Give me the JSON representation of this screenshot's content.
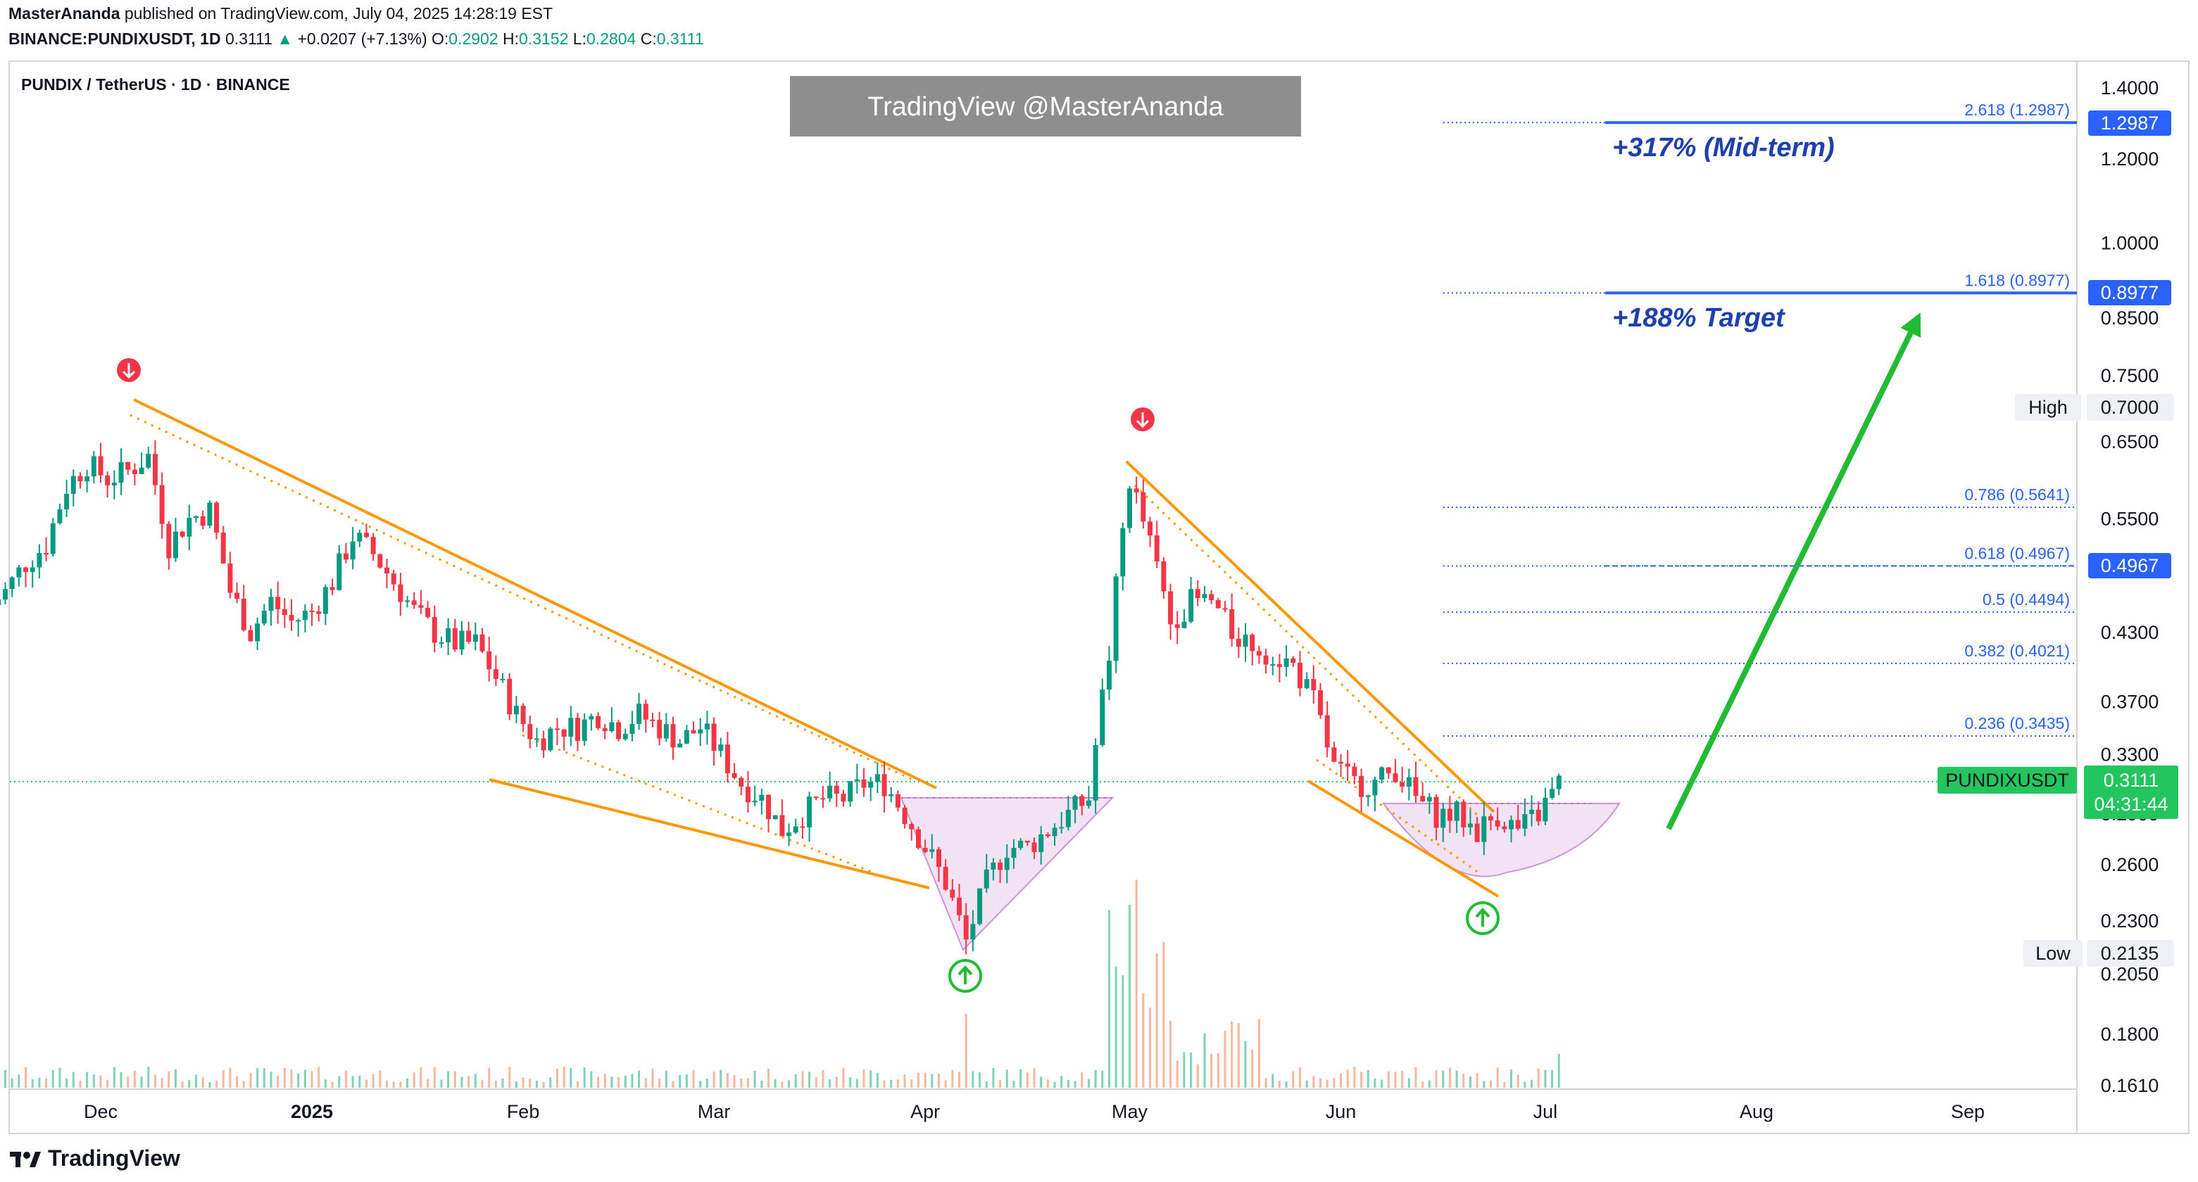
{
  "header": {
    "publisher": "MasterAnanda",
    "published_text": "published on TradingView.com, July 04, 2025 14:28:19 EST",
    "symbol_line": "BINANCE:PUNDIXUSDT, 1D",
    "last": "0.3111",
    "change": "+0.0207 (+7.13%)",
    "o_label": "O:",
    "o": "0.2902",
    "h_label": "H:",
    "h": "0.3152",
    "l_label": "L:",
    "l": "0.2804",
    "c_label": "C:",
    "c": "0.3111"
  },
  "chart_title": "PUNDIX / TetherUS · 1D · BINANCE",
  "watermark": "TradingView @MasterAnanda",
  "annotations": {
    "mid_term": "+317% (Mid-term)",
    "target": "+188% Target"
  },
  "price_tags": {
    "high_label": "High",
    "high_value": "0.7000",
    "low_label": "Low",
    "low_value": "0.2135",
    "fib_2618": "1.2987",
    "fib_1618": "0.8977",
    "fib_0618": "0.4967",
    "symbol": "PUNDIXUSDT",
    "current": "0.3111",
    "countdown": "04:31:44"
  },
  "footer": {
    "brand": "TradingView"
  },
  "colors": {
    "up": "#089981",
    "down": "#f23645",
    "fib_line": "#2962ff",
    "trend": "#ff9800",
    "arrow": "#22bb33",
    "area": "#e1bee7",
    "price_tag": "#22c55e"
  },
  "chart_data": {
    "type": "candlestick",
    "y_scale": "log",
    "ylim": [
      0.16,
      1.45
    ],
    "y_ticks": [
      "1.4000",
      "1.2000",
      "1.0000",
      "0.8500",
      "0.7500",
      "0.6500",
      "0.5500",
      "0.4300",
      "0.3700",
      "0.3300",
      "0.2900",
      "0.2600",
      "0.2300",
      "0.2050",
      "0.1800",
      "0.1610"
    ],
    "x_ticks": [
      "Dec",
      "2025",
      "Feb",
      "Mar",
      "Apr",
      "May",
      "Jun",
      "Jul",
      "Aug",
      "Sep"
    ],
    "x_range": [
      "2024-11-14",
      "2025-09-30"
    ],
    "fib_levels": [
      {
        "label": "2.618 (1.2987)",
        "value": 1.2987
      },
      {
        "label": "1.618 (0.8977)",
        "value": 0.8977
      },
      {
        "label": "0.786 (0.5641)",
        "value": 0.5641
      },
      {
        "label": "0.618 (0.4967)",
        "value": 0.4967
      },
      {
        "label": "0.5 (0.4494)",
        "value": 0.4494
      },
      {
        "label": "0.382 (0.4021)",
        "value": 0.4021
      },
      {
        "label": "0.236 (0.3435)",
        "value": 0.3435
      }
    ],
    "current_price": 0.3111,
    "high": 0.7,
    "low": 0.2135,
    "closes": [
      [
        "2024-11-14",
        0.45
      ],
      [
        "2024-11-17",
        0.47
      ],
      [
        "2024-11-20",
        0.5
      ],
      [
        "2024-11-23",
        0.52
      ],
      [
        "2024-11-26",
        0.59
      ],
      [
        "2024-11-29",
        0.62
      ],
      [
        "2024-12-02",
        0.6
      ],
      [
        "2024-12-05",
        0.61
      ],
      [
        "2024-12-08",
        0.63
      ],
      [
        "2024-12-11",
        0.52
      ],
      [
        "2024-12-14",
        0.55
      ],
      [
        "2024-12-17",
        0.56
      ],
      [
        "2024-12-20",
        0.47
      ],
      [
        "2024-12-23",
        0.43
      ],
      [
        "2024-12-26",
        0.46
      ],
      [
        "2024-12-29",
        0.44
      ],
      [
        "2025-01-01",
        0.45
      ],
      [
        "2025-01-04",
        0.48
      ],
      [
        "2025-01-07",
        0.53
      ],
      [
        "2025-01-10",
        0.51
      ],
      [
        "2025-01-13",
        0.48
      ],
      [
        "2025-01-16",
        0.45
      ],
      [
        "2025-01-19",
        0.43
      ],
      [
        "2025-01-22",
        0.42
      ],
      [
        "2025-01-25",
        0.42
      ],
      [
        "2025-01-28",
        0.39
      ],
      [
        "2025-01-31",
        0.36
      ],
      [
        "2025-02-03",
        0.34
      ],
      [
        "2025-02-06",
        0.35
      ],
      [
        "2025-02-09",
        0.35
      ],
      [
        "2025-02-12",
        0.36
      ],
      [
        "2025-02-15",
        0.35
      ],
      [
        "2025-02-18",
        0.36
      ],
      [
        "2025-02-21",
        0.35
      ],
      [
        "2025-02-24",
        0.34
      ],
      [
        "2025-02-27",
        0.35
      ],
      [
        "2025-03-02",
        0.33
      ],
      [
        "2025-03-05",
        0.31
      ],
      [
        "2025-03-08",
        0.3
      ],
      [
        "2025-03-11",
        0.28
      ],
      [
        "2025-03-14",
        0.29
      ],
      [
        "2025-03-17",
        0.3
      ],
      [
        "2025-03-20",
        0.3
      ],
      [
        "2025-03-23",
        0.31
      ],
      [
        "2025-03-26",
        0.31
      ],
      [
        "2025-03-29",
        0.29
      ],
      [
        "2025-04-01",
        0.27
      ],
      [
        "2025-04-04",
        0.25
      ],
      [
        "2025-04-07",
        0.22
      ],
      [
        "2025-04-10",
        0.25
      ],
      [
        "2025-04-13",
        0.27
      ],
      [
        "2025-04-16",
        0.27
      ],
      [
        "2025-04-19",
        0.28
      ],
      [
        "2025-04-22",
        0.29
      ],
      [
        "2025-04-25",
        0.3
      ],
      [
        "2025-04-28",
        0.41
      ],
      [
        "2025-05-01",
        0.6
      ],
      [
        "2025-05-04",
        0.52
      ],
      [
        "2025-05-07",
        0.44
      ],
      [
        "2025-05-10",
        0.46
      ],
      [
        "2025-05-13",
        0.46
      ],
      [
        "2025-05-16",
        0.43
      ],
      [
        "2025-05-19",
        0.42
      ],
      [
        "2025-05-22",
        0.41
      ],
      [
        "2025-05-25",
        0.4
      ],
      [
        "2025-05-28",
        0.37
      ],
      [
        "2025-05-31",
        0.32
      ],
      [
        "2025-06-03",
        0.31
      ],
      [
        "2025-06-06",
        0.31
      ],
      [
        "2025-06-09",
        0.32
      ],
      [
        "2025-06-12",
        0.3
      ],
      [
        "2025-06-15",
        0.29
      ],
      [
        "2025-06-18",
        0.29
      ],
      [
        "2025-06-21",
        0.28
      ],
      [
        "2025-06-24",
        0.29
      ],
      [
        "2025-06-27",
        0.28
      ],
      [
        "2025-06-30",
        0.29
      ],
      [
        "2025-07-03",
        0.31
      ]
    ]
  }
}
